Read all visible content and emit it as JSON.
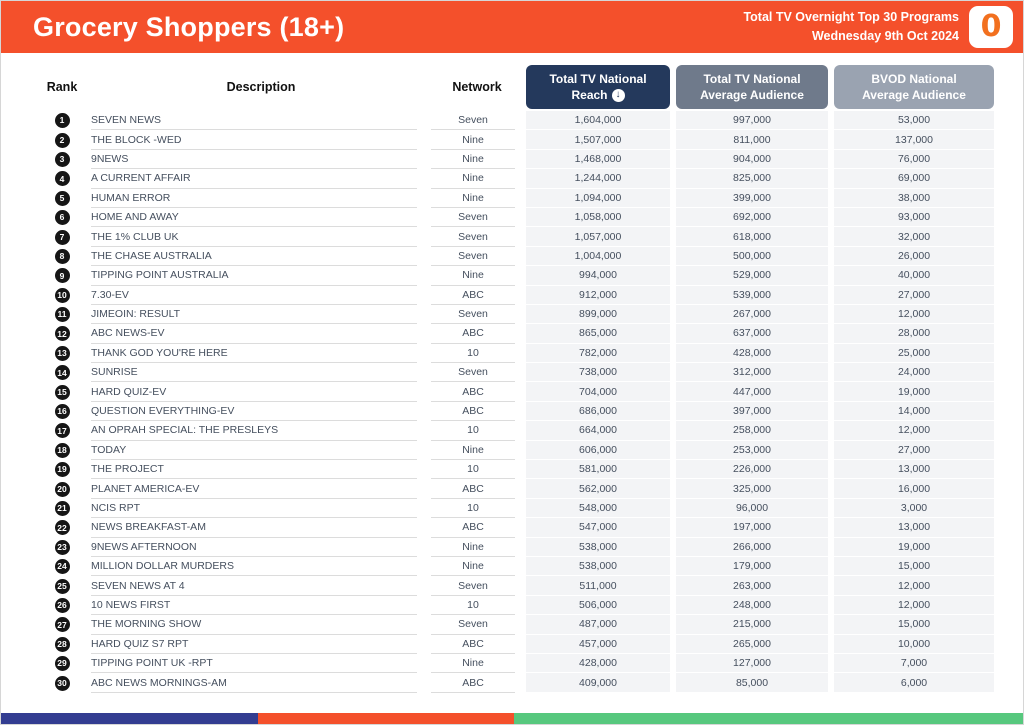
{
  "page": {
    "header": {
      "title": "Grocery Shoppers (18+)",
      "report_line1": "Total TV Overnight Top 30 Programs",
      "report_line2": "Wednesday 9th Oct 2024",
      "logo_glyph": "0"
    },
    "colors": {
      "banner_bg": "#F4502B",
      "reach_header_bg": "#24395C",
      "avg_header_bg": "#6F7A8B",
      "bvod_header_bg": "#9AA3B1",
      "footer_blue": "#333D91",
      "footer_orange": "#F4502B",
      "footer_green": "#57C87E"
    },
    "table": {
      "columns": {
        "rank": "Rank",
        "description": "Description",
        "network": "Network",
        "reach_line1": "Total TV National",
        "reach_line2": "Reach",
        "avg_line1": "Total TV National",
        "avg_line2": "Average Audience",
        "bvod_line1": "BVOD National",
        "bvod_line2": "Average Audience"
      },
      "sort_icon": "↓",
      "rows": [
        {
          "rank": "1",
          "description": "SEVEN NEWS",
          "network": "Seven",
          "reach": "1,604,000",
          "avg": "997,000",
          "bvod": "53,000"
        },
        {
          "rank": "2",
          "description": "THE BLOCK -WED",
          "network": "Nine",
          "reach": "1,507,000",
          "avg": "811,000",
          "bvod": "137,000"
        },
        {
          "rank": "3",
          "description": "9NEWS",
          "network": "Nine",
          "reach": "1,468,000",
          "avg": "904,000",
          "bvod": "76,000"
        },
        {
          "rank": "4",
          "description": "A CURRENT AFFAIR",
          "network": "Nine",
          "reach": "1,244,000",
          "avg": "825,000",
          "bvod": "69,000"
        },
        {
          "rank": "5",
          "description": "HUMAN ERROR",
          "network": "Nine",
          "reach": "1,094,000",
          "avg": "399,000",
          "bvod": "38,000"
        },
        {
          "rank": "6",
          "description": "HOME AND AWAY",
          "network": "Seven",
          "reach": "1,058,000",
          "avg": "692,000",
          "bvod": "93,000"
        },
        {
          "rank": "7",
          "description": "THE 1% CLUB UK",
          "network": "Seven",
          "reach": "1,057,000",
          "avg": "618,000",
          "bvod": "32,000"
        },
        {
          "rank": "8",
          "description": "THE CHASE AUSTRALIA",
          "network": "Seven",
          "reach": "1,004,000",
          "avg": "500,000",
          "bvod": "26,000"
        },
        {
          "rank": "9",
          "description": "TIPPING POINT AUSTRALIA",
          "network": "Nine",
          "reach": "994,000",
          "avg": "529,000",
          "bvod": "40,000"
        },
        {
          "rank": "10",
          "description": "7.30-EV",
          "network": "ABC",
          "reach": "912,000",
          "avg": "539,000",
          "bvod": "27,000"
        },
        {
          "rank": "11",
          "description": "JIMEOIN: RESULT",
          "network": "Seven",
          "reach": "899,000",
          "avg": "267,000",
          "bvod": "12,000"
        },
        {
          "rank": "12",
          "description": "ABC NEWS-EV",
          "network": "ABC",
          "reach": "865,000",
          "avg": "637,000",
          "bvod": "28,000"
        },
        {
          "rank": "13",
          "description": "THANK GOD YOU'RE HERE",
          "network": "10",
          "reach": "782,000",
          "avg": "428,000",
          "bvod": "25,000"
        },
        {
          "rank": "14",
          "description": "SUNRISE",
          "network": "Seven",
          "reach": "738,000",
          "avg": "312,000",
          "bvod": "24,000"
        },
        {
          "rank": "15",
          "description": "HARD QUIZ-EV",
          "network": "ABC",
          "reach": "704,000",
          "avg": "447,000",
          "bvod": "19,000"
        },
        {
          "rank": "16",
          "description": "QUESTION EVERYTHING-EV",
          "network": "ABC",
          "reach": "686,000",
          "avg": "397,000",
          "bvod": "14,000"
        },
        {
          "rank": "17",
          "description": "AN OPRAH SPECIAL: THE PRESLEYS",
          "network": "10",
          "reach": "664,000",
          "avg": "258,000",
          "bvod": "12,000"
        },
        {
          "rank": "18",
          "description": "TODAY",
          "network": "Nine",
          "reach": "606,000",
          "avg": "253,000",
          "bvod": "27,000"
        },
        {
          "rank": "19",
          "description": "THE PROJECT",
          "network": "10",
          "reach": "581,000",
          "avg": "226,000",
          "bvod": "13,000"
        },
        {
          "rank": "20",
          "description": "PLANET AMERICA-EV",
          "network": "ABC",
          "reach": "562,000",
          "avg": "325,000",
          "bvod": "16,000"
        },
        {
          "rank": "21",
          "description": "NCIS RPT",
          "network": "10",
          "reach": "548,000",
          "avg": "96,000",
          "bvod": "3,000"
        },
        {
          "rank": "22",
          "description": "NEWS BREAKFAST-AM",
          "network": "ABC",
          "reach": "547,000",
          "avg": "197,000",
          "bvod": "13,000"
        },
        {
          "rank": "23",
          "description": "9NEWS AFTERNOON",
          "network": "Nine",
          "reach": "538,000",
          "avg": "266,000",
          "bvod": "19,000"
        },
        {
          "rank": "24",
          "description": "MILLION DOLLAR MURDERS",
          "network": "Nine",
          "reach": "538,000",
          "avg": "179,000",
          "bvod": "15,000"
        },
        {
          "rank": "25",
          "description": "SEVEN NEWS AT 4",
          "network": "Seven",
          "reach": "511,000",
          "avg": "263,000",
          "bvod": "12,000"
        },
        {
          "rank": "26",
          "description": "10 NEWS FIRST",
          "network": "10",
          "reach": "506,000",
          "avg": "248,000",
          "bvod": "12,000"
        },
        {
          "rank": "27",
          "description": "THE MORNING SHOW",
          "network": "Seven",
          "reach": "487,000",
          "avg": "215,000",
          "bvod": "15,000"
        },
        {
          "rank": "28",
          "description": "HARD QUIZ S7 RPT",
          "network": "ABC",
          "reach": "457,000",
          "avg": "265,000",
          "bvod": "10,000"
        },
        {
          "rank": "29",
          "description": "TIPPING POINT UK -RPT",
          "network": "Nine",
          "reach": "428,000",
          "avg": "127,000",
          "bvod": "7,000"
        },
        {
          "rank": "30",
          "description": "ABC NEWS MORNINGS-AM",
          "network": "ABC",
          "reach": "409,000",
          "avg": "85,000",
          "bvod": "6,000"
        }
      ]
    }
  }
}
